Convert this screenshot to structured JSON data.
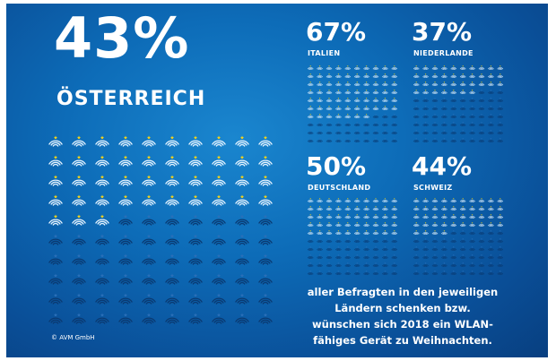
{
  "main": {
    "percent": "43%",
    "country": "ÖSTERREICH",
    "share": 0.43
  },
  "small": [
    {
      "percent": "67%",
      "country": "ITALIEN",
      "share": 0.67
    },
    {
      "percent": "37%",
      "country": "NIEDERLANDE",
      "share": 0.37
    },
    {
      "percent": "50%",
      "country": "DEUTSCHLAND",
      "share": 0.5
    },
    {
      "percent": "44%",
      "country": "SCHWEIZ",
      "share": 0.44
    }
  ],
  "caption": "aller Befragten in den jeweiligen Ländern schenken bzw. wünschen sich 2018 ein WLAN-fähiges Gerät zu Weihnachten.",
  "copyright": "© AVM GmbH",
  "colors": {
    "background": "#0d6cb8",
    "active_wave": "#e6f4ff",
    "inactive_wave": "#0a3a72",
    "active_star": "#f2d21c",
    "inactive_star": "#2a6fb8"
  }
}
